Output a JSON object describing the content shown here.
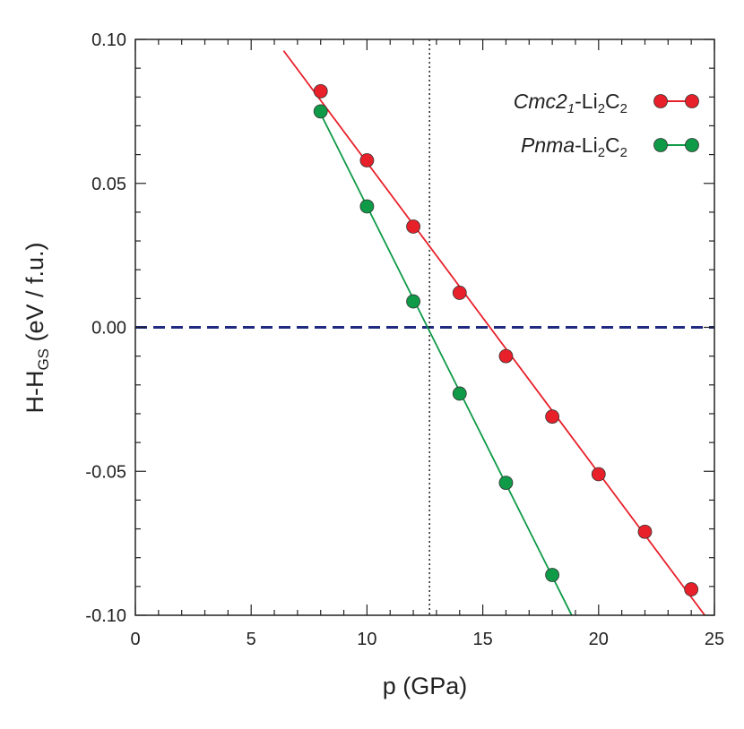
{
  "chart_data": {
    "type": "line",
    "xlabel": "p (GPa)",
    "ylabel": {
      "main": "H-H",
      "sub": "GS",
      "unit": " (eV / f.u.)"
    },
    "xlim": [
      0,
      25
    ],
    "ylim": [
      -0.1,
      0.1
    ],
    "xticks": [
      0,
      5,
      10,
      15,
      20,
      25
    ],
    "xtick_labels": [
      "0",
      "5",
      "10",
      "15",
      "20",
      "25"
    ],
    "yticks": [
      -0.1,
      -0.05,
      0.0,
      0.05,
      0.1
    ],
    "ytick_labels": [
      "-0.10",
      "-0.05",
      "0.00",
      "0.05",
      "0.10"
    ],
    "grid": false,
    "legend_position": "top-right",
    "reference_lines": [
      {
        "orientation": "horizontal",
        "value": 0.0,
        "style": "dashed",
        "color": "#1f2a80"
      },
      {
        "orientation": "vertical",
        "value": 12.7,
        "style": "dotted",
        "color": "#222222"
      }
    ],
    "series": [
      {
        "name": {
          "phase": "Cmc2",
          "phase_sub": "1",
          "formula": "-Li",
          "sub1": "2",
          "formula2": "C",
          "sub2": "2"
        },
        "color": "#e8202a",
        "x": [
          8,
          10,
          12,
          14,
          16,
          18,
          20,
          22,
          24
        ],
        "y": [
          0.082,
          0.058,
          0.035,
          0.012,
          -0.01,
          -0.031,
          -0.051,
          -0.071,
          -0.091
        ],
        "fit_line_range": [
          6.4,
          25
        ]
      },
      {
        "name": {
          "phase": "Pnma",
          "phase_sub": "",
          "formula": "-Li",
          "sub1": "2",
          "formula2": "C",
          "sub2": "2"
        },
        "color": "#0f9a48",
        "x": [
          8,
          10,
          12,
          14,
          16,
          18
        ],
        "y": [
          0.075,
          0.042,
          0.009,
          -0.023,
          -0.054,
          -0.086
        ],
        "fit_line_range": [
          8,
          18.9
        ]
      }
    ]
  }
}
